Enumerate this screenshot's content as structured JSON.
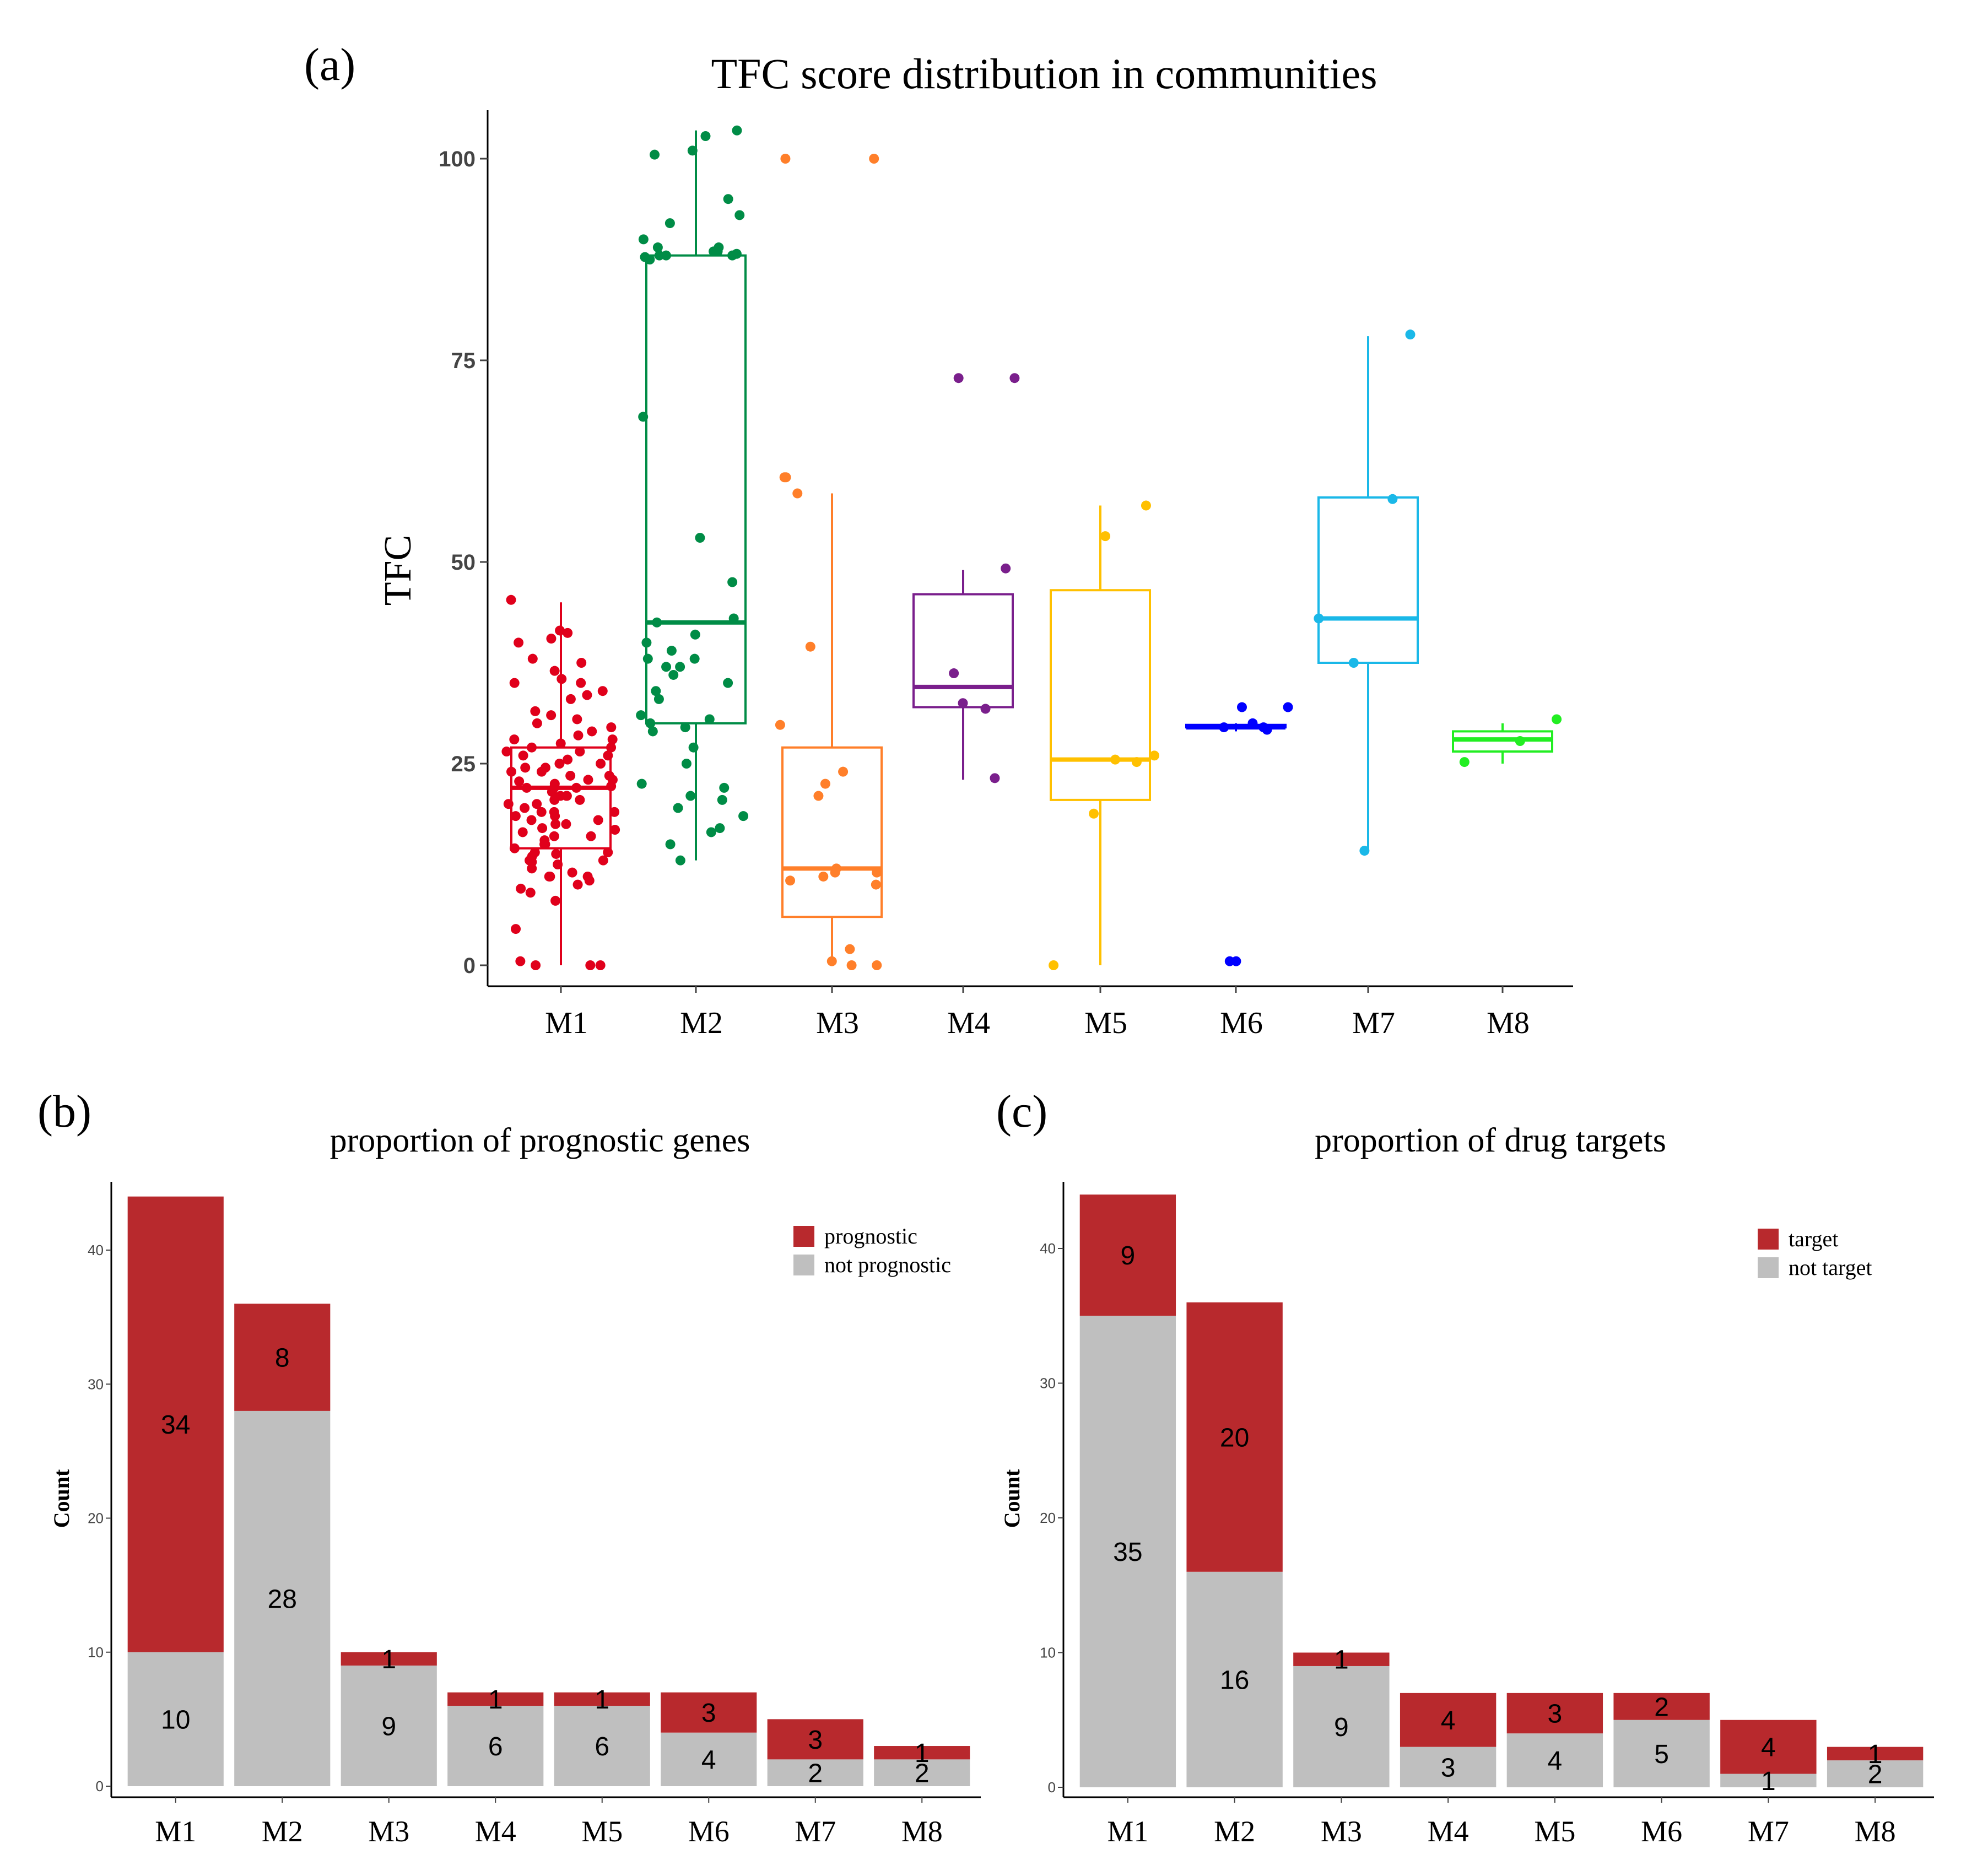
{
  "panel_labels": {
    "a": "(a)",
    "b": "(b)",
    "c": "(c)"
  },
  "colors": {
    "M1": "#e0001b",
    "M2": "#008c46",
    "M3": "#ff7f2a",
    "M4": "#7a1f8c",
    "M5": "#ffc000",
    "M6": "#0000ff",
    "M7": "#1ab8e8",
    "M8": "#22ee22",
    "red": "#b8292d",
    "grey": "#bfbfbf"
  },
  "chart_data": [
    {
      "id": "a",
      "type": "boxplot",
      "title": "TFC score distribution in communities",
      "xlabel": "",
      "ylabel": "TFC",
      "ylim": [
        -3,
        106
      ],
      "yticks": [
        "0",
        "25",
        "50",
        "75",
        "100"
      ],
      "categories": [
        "M1",
        "M2",
        "M3",
        "M4",
        "M5",
        "M6",
        "M7",
        "M8"
      ],
      "boxes": [
        {
          "name": "M1",
          "min": 0,
          "q1": 14.5,
          "median": 22,
          "q3": 27,
          "max": 45
        },
        {
          "name": "M2",
          "min": 13,
          "q1": 30,
          "median": 42.5,
          "q3": 88,
          "max": 103.5
        },
        {
          "name": "M3",
          "min": 0,
          "q1": 6,
          "median": 12,
          "q3": 27,
          "max": 58.5
        },
        {
          "name": "M4",
          "min": 23,
          "q1": 32,
          "median": 34.5,
          "q3": 46,
          "max": 49
        },
        {
          "name": "M5",
          "min": 0,
          "q1": 20.5,
          "median": 25.5,
          "q3": 46.5,
          "max": 57
        },
        {
          "name": "M6",
          "min": 29,
          "q1": 29.5,
          "median": 29.5,
          "q3": 29.8,
          "max": 30
        },
        {
          "name": "M7",
          "min": 14,
          "q1": 37.5,
          "median": 43,
          "q3": 58,
          "max": 78
        },
        {
          "name": "M8",
          "min": 25,
          "q1": 26.5,
          "median": 28,
          "q3": 29,
          "max": 30
        }
      ],
      "points": {
        "M1": [
          41.5,
          41.2,
          40,
          38,
          36.5,
          35.5,
          35,
          34,
          33,
          31,
          30,
          29,
          28.5,
          28,
          27.5,
          27,
          26.5,
          26,
          25.5,
          25,
          24.5,
          24,
          23.5,
          23,
          22.8,
          22.5,
          22.2,
          22,
          21.5,
          21,
          20.5,
          20,
          19.5,
          19,
          18.5,
          18,
          17.5,
          17,
          16.5,
          16,
          15.5,
          15,
          14.5,
          14,
          13.5,
          13,
          12.5,
          12,
          11.5,
          11,
          10.5,
          10,
          9.5,
          9,
          8,
          4.5,
          45.3,
          40.5,
          35,
          30.5,
          27,
          24,
          22,
          21,
          19,
          18,
          17.5,
          16,
          14,
          12.8,
          11,
          0.5,
          0,
          0,
          0,
          28,
          26,
          25,
          23,
          22,
          21,
          20,
          19,
          15,
          13,
          11,
          37.5,
          33.5,
          31.5,
          29.5,
          26.5,
          24.5,
          23.5,
          20.5,
          18.5,
          16.8,
          13.8
        ],
        "M2": [
          103.5,
          102.8,
          101,
          100.5,
          95,
          93,
          92,
          90,
          89,
          89,
          88.5,
          88.5,
          88.2,
          88,
          88,
          88,
          87.8,
          87.5,
          68,
          53,
          47.5,
          43,
          42.5,
          41,
          40,
          39,
          38,
          38,
          37,
          37,
          36,
          35,
          34,
          33,
          31,
          30.5,
          30,
          29.5,
          29,
          27,
          25,
          22.5,
          22,
          21,
          20.5,
          19.5,
          18.5,
          17,
          16.5,
          15,
          13
        ],
        "M3": [
          100,
          100,
          60.5,
          60.5,
          58.5,
          39.5,
          29.8,
          24,
          22.5,
          21,
          12,
          11.5,
          11.5,
          11,
          10.5,
          10,
          2,
          0.5,
          0,
          0
        ],
        "M4": [
          72.8,
          72.8,
          49.2,
          36.2,
          32.5,
          31.8,
          23.2
        ],
        "M5": [
          57,
          53.2,
          26,
          25.5,
          25.2,
          18.8,
          0
        ],
        "M6": [
          32,
          32,
          30,
          29.5,
          29.5,
          29.2,
          0.5,
          0.5
        ],
        "M7": [
          78.2,
          57.8,
          43,
          37.5,
          14.2
        ],
        "M8": [
          30.5,
          27.8,
          25.2
        ]
      }
    },
    {
      "id": "b",
      "type": "bar",
      "stacked": true,
      "title": "proportion of prognostic genes",
      "xlabel": "",
      "ylabel": "Count",
      "ylim": [
        0,
        44
      ],
      "yticks": [
        "0",
        "10",
        "20",
        "30",
        "40"
      ],
      "categories": [
        "M1",
        "M2",
        "M3",
        "M4",
        "M5",
        "M6",
        "M7",
        "M8"
      ],
      "series": [
        {
          "name": "not prognostic",
          "values": [
            10,
            28,
            9,
            6,
            6,
            4,
            2,
            2
          ],
          "labels": [
            "10",
            "28",
            "9",
            "6",
            "6",
            "4",
            "2",
            "2"
          ]
        },
        {
          "name": "prognostic",
          "values": [
            34,
            8,
            1,
            1,
            1,
            3,
            3,
            1
          ],
          "labels": [
            "34",
            "8",
            "1",
            "1",
            "1",
            "3",
            "3",
            "1"
          ]
        }
      ],
      "legend": [
        "prognostic",
        "not prognostic"
      ],
      "legend_position": "top-right"
    },
    {
      "id": "c",
      "type": "bar",
      "stacked": true,
      "title": "proportion of drug targets",
      "xlabel": "",
      "ylabel": "Count",
      "ylim": [
        0,
        44
      ],
      "yticks": [
        "0",
        "10",
        "20",
        "30",
        "40"
      ],
      "categories": [
        "M1",
        "M2",
        "M3",
        "M4",
        "M5",
        "M6",
        "M7",
        "M8"
      ],
      "series": [
        {
          "name": "not target",
          "values": [
            35,
            16,
            9,
            3,
            4,
            5,
            1,
            2
          ],
          "labels": [
            "35",
            "16",
            "9",
            "3",
            "4",
            "5",
            "1",
            "2"
          ]
        },
        {
          "name": "target",
          "values": [
            9,
            20,
            1,
            4,
            3,
            2,
            4,
            1
          ],
          "labels": [
            "9",
            "20",
            "1",
            "4",
            "3",
            "2",
            "4",
            "1"
          ]
        }
      ],
      "legend": [
        "target",
        "not target"
      ],
      "legend_position": "top-right"
    }
  ]
}
